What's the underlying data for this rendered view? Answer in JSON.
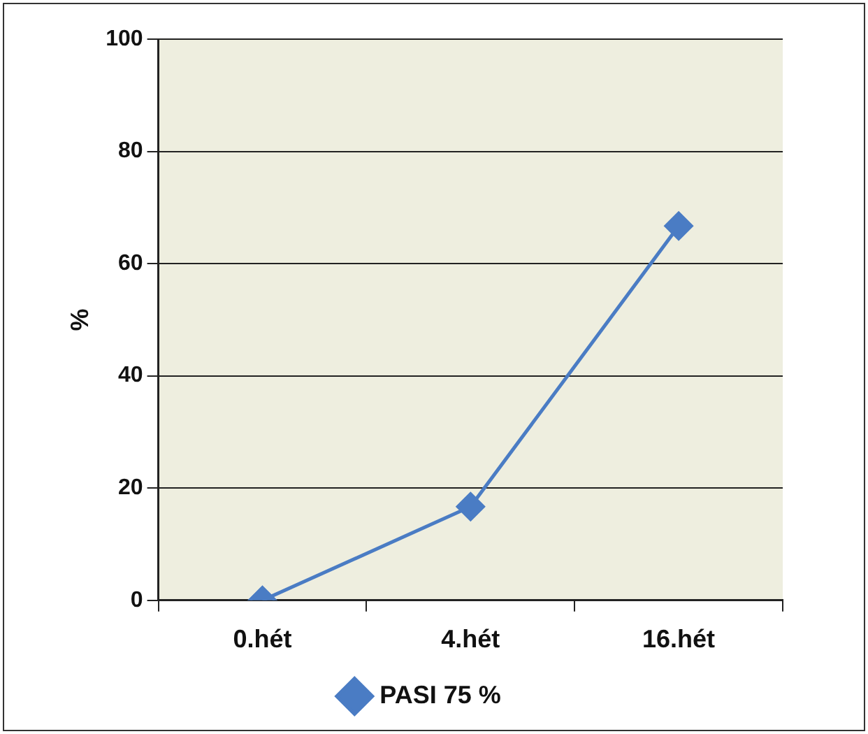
{
  "chart_data": {
    "type": "line",
    "ylabel": "%",
    "categories": [
      "0.hét",
      "4.hét",
      "16.hét"
    ],
    "series": [
      {
        "name": "PASI 75 %",
        "color": "#4a7cc4",
        "values": [
          0,
          16.7,
          66.7
        ]
      }
    ],
    "ylim": [
      0,
      100
    ],
    "yticks": [
      0,
      20,
      40,
      60,
      80,
      100
    ],
    "grid": "y",
    "legend": "bottom",
    "marker": "diamond",
    "line_style": "solid"
  }
}
